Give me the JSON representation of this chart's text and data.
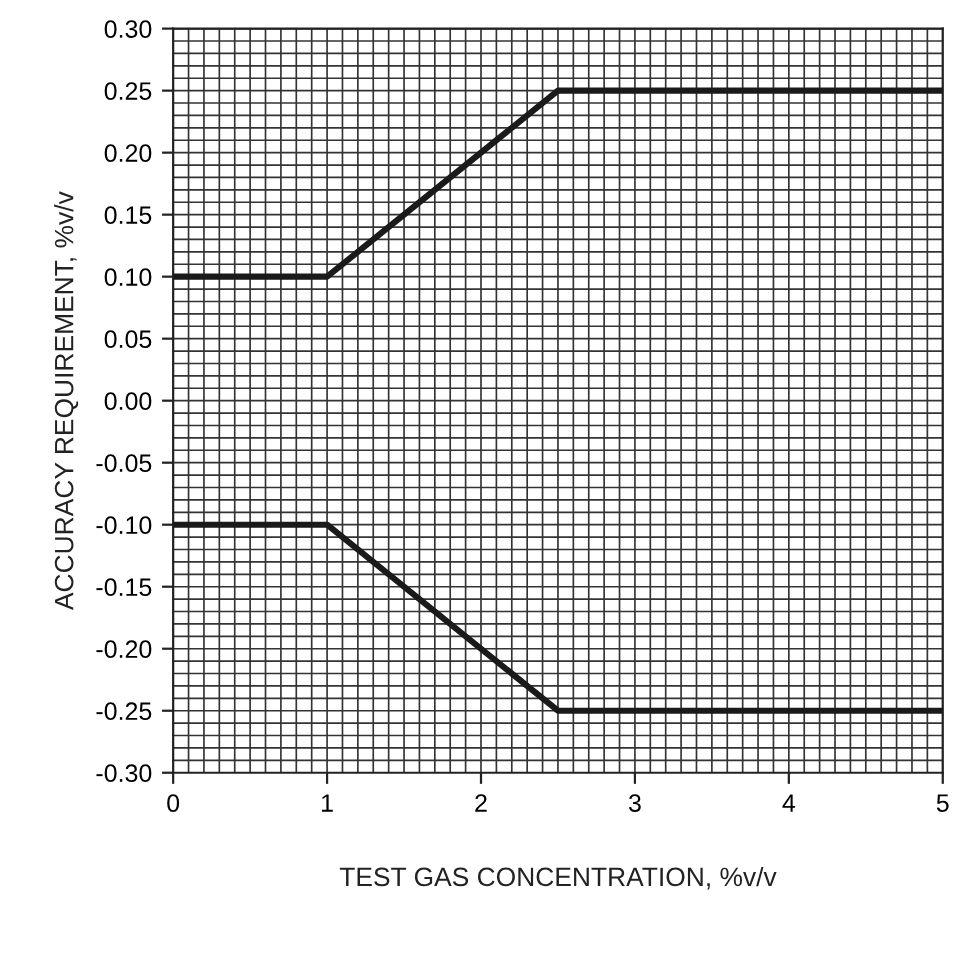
{
  "chart_data": {
    "type": "line",
    "xlabel": "TEST GAS CONCENTRATION, %v/v",
    "ylabel": "ACCURACY REQUIREMENT, %v/v",
    "series": [
      {
        "color": "#1a1a1a",
        "x": [
          0,
          1,
          2.5,
          5
        ],
        "values": [
          0.1,
          0.1,
          0.25,
          0.25
        ]
      },
      {
        "color": "#1a1a1a",
        "x": [
          0,
          1,
          2.5,
          5
        ],
        "values": [
          -0.1,
          -0.1,
          -0.25,
          -0.25
        ]
      }
    ],
    "xlim": [
      0,
      5
    ],
    "xticks": [
      0,
      1,
      2,
      3,
      4,
      5
    ],
    "ylim": [
      -0.3,
      0.3
    ],
    "yticks": [
      {
        "value": -0.3,
        "label": "-0.30"
      },
      {
        "value": -0.25,
        "label": "-0.25"
      },
      {
        "value": -0.2,
        "label": "-0.20"
      },
      {
        "value": -0.15,
        "label": "-0.15"
      },
      {
        "value": -0.1,
        "label": "-0.10"
      },
      {
        "value": -0.05,
        "label": "-0.05"
      },
      {
        "value": 0,
        "label": "0.00"
      },
      {
        "value": 0.05,
        "label": "0.05"
      },
      {
        "value": 0.1,
        "label": "0.10"
      },
      {
        "value": 0.15,
        "label": "0.15"
      },
      {
        "value": 0.2,
        "label": "0.20"
      },
      {
        "value": 0.25,
        "label": "0.25"
      },
      {
        "value": 0.3,
        "label": "0.30"
      }
    ],
    "grid": true,
    "line_style": "solid",
    "marker": "none"
  }
}
